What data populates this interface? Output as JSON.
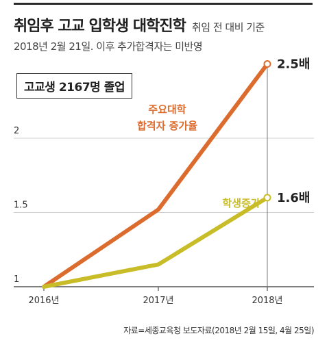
{
  "header": {
    "title": "취임후 고교 입학생 대학진학",
    "title_suffix": "취임 전 대비 기준",
    "subtitle": "2018년 2월 21일. 이후 추가합격자는 미반영"
  },
  "box_label": "고교생 2167명 졸업",
  "source": "자료=세종교육청 보도자료(2018년 2월 15일, 4월 25일)",
  "colors": {
    "orange": "#dc6c2e",
    "olive": "#c8bd28",
    "grid": "#cfcfcf",
    "axis": "#555555"
  },
  "chart_data": {
    "type": "line",
    "categories": [
      "2016년",
      "2017년",
      "2018년"
    ],
    "series": [
      {
        "name": "주요대학 합격자 증가율",
        "name_lines": [
          "주요대학",
          "합격자 증가율"
        ],
        "values": [
          1.0,
          1.52,
          2.5
        ],
        "end_label": "2.5배",
        "color": "#dc6c2e"
      },
      {
        "name": "학생증가",
        "name_lines": [
          "학생증가"
        ],
        "values": [
          1.0,
          1.15,
          1.6
        ],
        "end_label": "1.6배",
        "color": "#c8bd28"
      }
    ],
    "yticks": [
      "1",
      "1.5",
      "2"
    ],
    "ylim": [
      1,
      2.65
    ],
    "grid": true
  }
}
